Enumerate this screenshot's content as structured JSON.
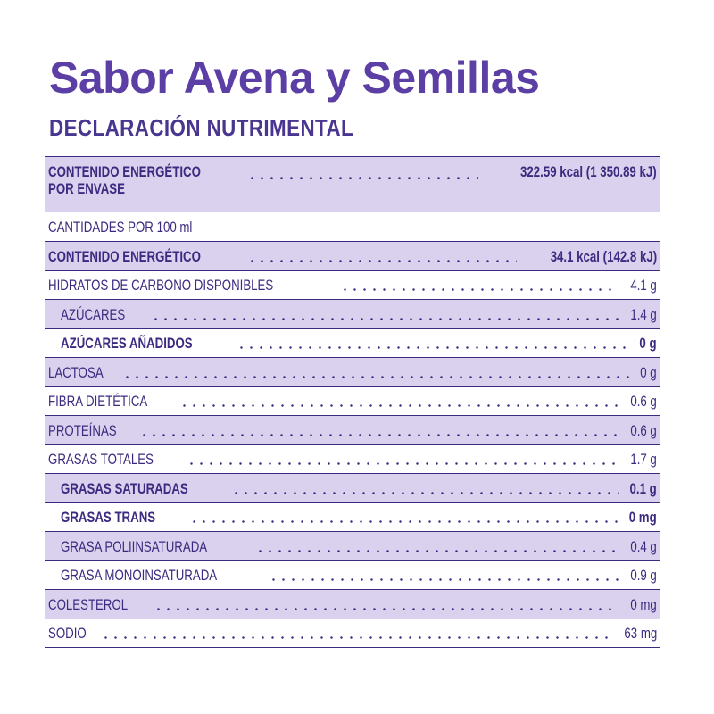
{
  "title": "Sabor Avena y Semillas",
  "subtitle": "DECLARACIÓN NUTRIMENTAL",
  "energy_per_pack": {
    "label_line1": "CONTENIDO ENERGÉTICO",
    "label_line2": "POR ENVASE",
    "value": "322.59 kcal (1 350.89 kJ)"
  },
  "per_100ml_label": "CANTIDADES POR 100 ml",
  "rows": [
    {
      "label": "CONTENIDO ENERGÉTICO",
      "value": "34.1 kcal (142.8 kJ)"
    },
    {
      "label": "HIDRATOS DE CARBONO DISPONIBLES",
      "value": "4.1 g"
    },
    {
      "label": "AZÚCARES",
      "value": "1.4 g"
    },
    {
      "label": "AZÚCARES AÑADIDOS",
      "value": "0 g"
    },
    {
      "label": "LACTOSA",
      "value": "0 g"
    },
    {
      "label": "FIBRA DIETÉTICA",
      "value": "0.6 g"
    },
    {
      "label": "PROTEÍNAS",
      "value": "0.6 g"
    },
    {
      "label": "GRASAS TOTALES",
      "value": "1.7 g"
    },
    {
      "label": "GRASAS SATURADAS",
      "value": "0.1 g"
    },
    {
      "label": "GRASAS TRANS",
      "value": "0 mg"
    },
    {
      "label": "GRASA POLIINSATURADA",
      "value": "0.4 g"
    },
    {
      "label": "GRASA MONOINSATURADA",
      "value": "0.9 g"
    },
    {
      "label": "COLESTEROL",
      "value": "0 mg"
    },
    {
      "label": "SODIO",
      "value": "63 mg"
    }
  ],
  "colors": {
    "title": "#5b3fa5",
    "text": "#3d2a80",
    "row_shade": "#d9d1ed"
  }
}
